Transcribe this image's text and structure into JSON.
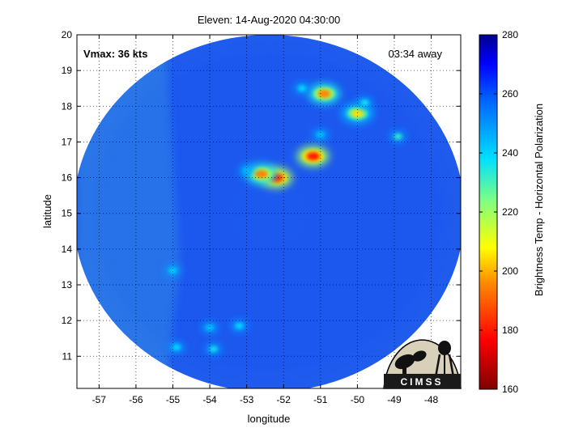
{
  "chart_data": {
    "type": "heatmap",
    "title": "Eleven: 14-Aug-2020 04:30:00",
    "xlabel": "longitude",
    "ylabel": "latitude",
    "xlim": [
      -57.6,
      -47.2
    ],
    "ylim": [
      10.1,
      20.0
    ],
    "xticks": [
      -57,
      -56,
      -55,
      -54,
      -53,
      -52,
      -51,
      -50,
      -49,
      -48
    ],
    "yticks": [
      11,
      12,
      13,
      14,
      15,
      16,
      17,
      18,
      19,
      20
    ],
    "grid": true,
    "annotations": {
      "vmax": "Vmax: 36 kts",
      "time_away": "03:34 away"
    },
    "colorbar": {
      "label": "Brightness Temp - Horizontal Polarization",
      "range": [
        160,
        280
      ],
      "ticks": [
        160,
        180,
        200,
        220,
        240,
        260,
        280
      ]
    },
    "swath": {
      "center_lon": -52.4,
      "center_lat": 15.0,
      "radius_lon": 5.3,
      "radius_lat": 5.0
    },
    "features": [
      {
        "lon": -52.2,
        "lat": 16.0,
        "value": 178
      },
      {
        "lon": -52.6,
        "lat": 16.1,
        "value": 195
      },
      {
        "lon": -51.2,
        "lat": 16.6,
        "value": 180
      },
      {
        "lon": -50.9,
        "lat": 18.35,
        "value": 195
      },
      {
        "lon": -50.0,
        "lat": 17.8,
        "value": 205
      },
      {
        "lon": -51.5,
        "lat": 18.5,
        "value": 238
      },
      {
        "lon": -49.8,
        "lat": 18.1,
        "value": 236
      },
      {
        "lon": -48.9,
        "lat": 17.15,
        "value": 232
      },
      {
        "lon": -53.9,
        "lat": 11.2,
        "value": 236
      },
      {
        "lon": -53.2,
        "lat": 11.85,
        "value": 238
      },
      {
        "lon": -54.9,
        "lat": 11.25,
        "value": 238
      },
      {
        "lon": -54.0,
        "lat": 11.8,
        "value": 242
      },
      {
        "lon": -55.0,
        "lat": 13.4,
        "value": 240
      },
      {
        "lon": -51.0,
        "lat": 17.2,
        "value": 243
      },
      {
        "lon": -53.0,
        "lat": 16.2,
        "value": 244
      }
    ]
  },
  "logo": {
    "text": "CIMSS"
  }
}
